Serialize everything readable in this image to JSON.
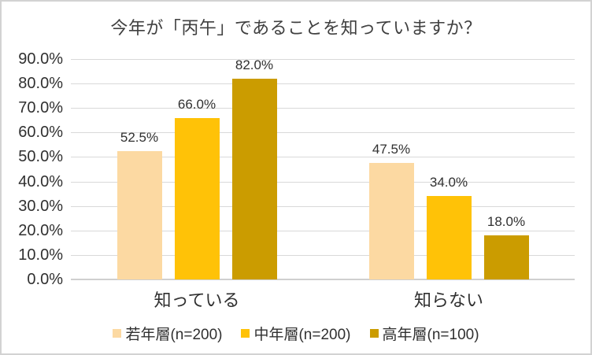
{
  "chart_data": {
    "type": "bar",
    "title": "今年が「丙午」であることを知っていますか？",
    "categories": [
      "知っている",
      "知らない"
    ],
    "series": [
      {
        "name": "若年層(n=200)",
        "color": "#FCD9A2",
        "values": [
          52.5,
          47.5
        ]
      },
      {
        "name": "中年層(n=200)",
        "color": "#FFC207",
        "values": [
          66.0,
          34.0
        ]
      },
      {
        "name": "高年層(n=100)",
        "color": "#CB9C00",
        "values": [
          82.0,
          18.0
        ]
      }
    ],
    "data_labels": [
      [
        "52.5%",
        "66.0%",
        "82.0%"
      ],
      [
        "47.5%",
        "34.0%",
        "18.0%"
      ]
    ],
    "y_axis": {
      "min": 0,
      "max": 90,
      "step": 10,
      "unit": "%",
      "tick_labels": [
        "0.0%",
        "10.0%",
        "20.0%",
        "30.0%",
        "40.0%",
        "50.0%",
        "60.0%",
        "70.0%",
        "80.0%",
        "90.0%"
      ]
    },
    "grid": true,
    "legend_position": "bottom",
    "colors": {
      "gridline": "#D9D9D9",
      "axis_line": "#CFCFCF",
      "text": "#303030",
      "title_text": "#404040",
      "background": "#FFFFFF",
      "border": "#D2D2D2"
    }
  }
}
